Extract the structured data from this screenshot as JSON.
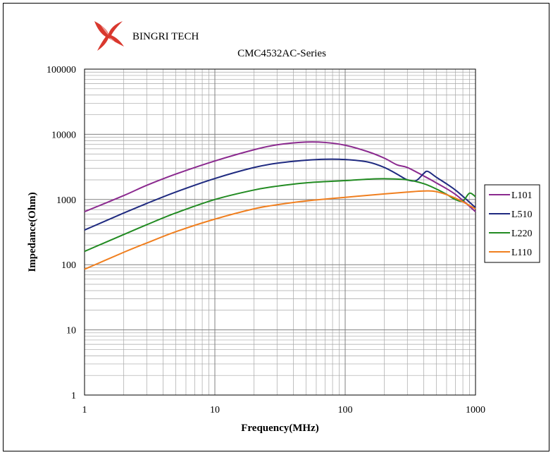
{
  "brand": {
    "name": "BINGRI TECH",
    "logo_icon": "bingri-flame-logo-icon",
    "logo_color": "#d9382e"
  },
  "chart_data": {
    "type": "line",
    "title": "CMC4532AC-Series",
    "xlabel": "Frequency(MHz)",
    "ylabel": "Impedance(Ohm)",
    "x_scale": "log",
    "y_scale": "log",
    "xlim": [
      1,
      1000
    ],
    "ylim": [
      1,
      100000
    ],
    "x_ticks": [
      "1",
      "10",
      "100",
      "1000"
    ],
    "y_ticks": [
      "1",
      "10",
      "100",
      "1000",
      "10000",
      "100000"
    ],
    "grid": true,
    "legend_position": "right",
    "series": [
      {
        "name": "L101",
        "color": "#8b2a8f",
        "points": [
          [
            1,
            650
          ],
          [
            2,
            1150
          ],
          [
            3,
            1650
          ],
          [
            5,
            2450
          ],
          [
            10,
            3900
          ],
          [
            20,
            5800
          ],
          [
            30,
            6900
          ],
          [
            50,
            7600
          ],
          [
            70,
            7500
          ],
          [
            100,
            6800
          ],
          [
            150,
            5400
          ],
          [
            200,
            4300
          ],
          [
            250,
            3400
          ],
          [
            300,
            3100
          ],
          [
            400,
            2300
          ],
          [
            500,
            1800
          ],
          [
            700,
            1200
          ],
          [
            1000,
            650
          ]
        ]
      },
      {
        "name": "L510",
        "color": "#1f2a80",
        "points": [
          [
            1,
            340
          ],
          [
            2,
            620
          ],
          [
            3,
            870
          ],
          [
            5,
            1300
          ],
          [
            10,
            2100
          ],
          [
            20,
            3100
          ],
          [
            30,
            3600
          ],
          [
            50,
            4000
          ],
          [
            70,
            4150
          ],
          [
            100,
            4100
          ],
          [
            150,
            3750
          ],
          [
            200,
            3100
          ],
          [
            250,
            2450
          ],
          [
            300,
            2000
          ],
          [
            350,
            1950
          ],
          [
            400,
            2500
          ],
          [
            430,
            2700
          ],
          [
            500,
            2200
          ],
          [
            700,
            1400
          ],
          [
            1000,
            750
          ]
        ]
      },
      {
        "name": "L220",
        "color": "#228b22",
        "points": [
          [
            1,
            160
          ],
          [
            2,
            290
          ],
          [
            3,
            410
          ],
          [
            5,
            620
          ],
          [
            10,
            1000
          ],
          [
            20,
            1400
          ],
          [
            30,
            1600
          ],
          [
            50,
            1800
          ],
          [
            100,
            1950
          ],
          [
            150,
            2050
          ],
          [
            200,
            2080
          ],
          [
            300,
            2000
          ],
          [
            400,
            1750
          ],
          [
            500,
            1450
          ],
          [
            600,
            1200
          ],
          [
            700,
            1000
          ],
          [
            800,
            950
          ],
          [
            900,
            1250
          ],
          [
            1000,
            1100
          ]
        ]
      },
      {
        "name": "L110",
        "color": "#f07f1f",
        "points": [
          [
            1,
            85
          ],
          [
            2,
            155
          ],
          [
            3,
            215
          ],
          [
            5,
            320
          ],
          [
            10,
            500
          ],
          [
            20,
            720
          ],
          [
            30,
            830
          ],
          [
            50,
            950
          ],
          [
            100,
            1080
          ],
          [
            200,
            1220
          ],
          [
            300,
            1300
          ],
          [
            400,
            1350
          ],
          [
            500,
            1320
          ],
          [
            700,
            1050
          ],
          [
            1000,
            720
          ]
        ]
      }
    ]
  }
}
